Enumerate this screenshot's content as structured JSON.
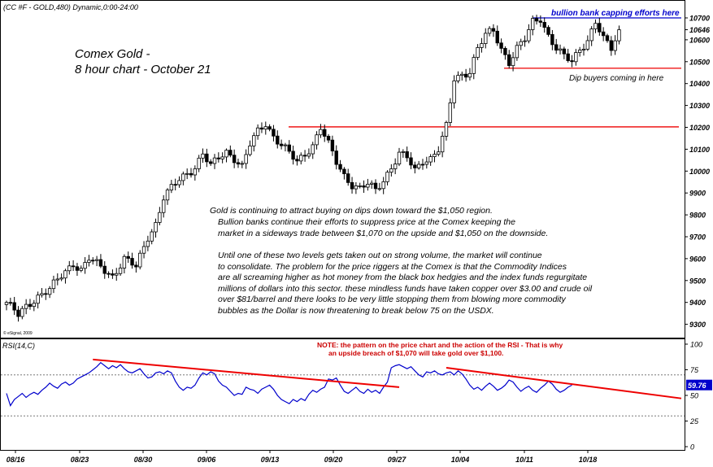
{
  "header": {
    "symbol_line": "(CC #F - GOLD,480) Dynamic,0:00-24:00",
    "title_line1": "Comex Gold -",
    "title_line2": "8 hour chart - October 21",
    "copyright": "© eSignal, 2009"
  },
  "annotations": {
    "capping": "bullion bank capping efforts here",
    "dip": "Dip buyers coming in here",
    "commentary": [
      "Gold is continuing to attract buying on dips down toward the $1,050 region.",
      "Bullion banks continue their efforts to suppress price at the Comex keeping the",
      "market in a sideways trade between $1,070 on the upside and $1,050 on the downside.",
      "",
      "Until one of these two levels gets taken out on strong volume, the market will continue",
      "to consolidate. The problem for the price riggers at the Comex is that the Commodity Indices",
      "are all screaming higher as hot money from the black box hedgies and the index funds regurgitate",
      "millions of dollars into this sector. these mindless funds  have taken copper over $3.00 and crude oil",
      "over $81/barrel and there looks to be very little stopping them from blowing more commodity",
      "bubbles as the Dollar is now threatening to break below 75 on the USDX."
    ],
    "rsi_note_line1": "NOTE: the pattern on the price chart and the action of the RSI - That is why",
    "rsi_note_line2": "an upside breach of $1,070 will take gold over $1,100."
  },
  "colors": {
    "candle": "#000000",
    "resistance_line": "#ee0000",
    "capping_line": "#0000cc",
    "rsi_line": "#0000cc",
    "rsi_trendline": "#ee0000",
    "rsi_badge": "#0000cc"
  },
  "chart_data": [
    {
      "type": "candlestick",
      "title": "Comex Gold - 8 hour chart - October 21",
      "y_ticks": [
        "10700",
        "10646",
        "10600",
        "10500",
        "10400",
        "10300",
        "10200",
        "10100",
        "10000",
        "9900",
        "9800",
        "9700",
        "9600",
        "9500",
        "9400",
        "9300"
      ],
      "last_price": "10646",
      "x_ticks": [
        "08/16",
        "08/23",
        "08/30",
        "09/06",
        "09/13",
        "09/20",
        "09/27",
        "10/04",
        "10/11",
        "10/18"
      ],
      "horizontal_levels": [
        {
          "price": 10202,
          "color": "resistance_line"
        },
        {
          "price": 10470,
          "color": "resistance_line"
        },
        {
          "price": 10700,
          "color": "capping_line"
        }
      ],
      "path_points": [
        [
          0,
          9400
        ],
        [
          3,
          9340
        ],
        [
          5,
          9380
        ],
        [
          8,
          9430
        ],
        [
          11,
          9460
        ],
        [
          14,
          9520
        ],
        [
          17,
          9580
        ],
        [
          19,
          9550
        ],
        [
          21,
          9600
        ],
        [
          24,
          9560
        ],
        [
          27,
          9520
        ],
        [
          30,
          9600
        ],
        [
          33,
          9560
        ],
        [
          36,
          9700
        ],
        [
          38,
          9760
        ],
        [
          40,
          9880
        ],
        [
          42,
          9920
        ],
        [
          44,
          9960
        ],
        [
          46,
          9990
        ],
        [
          48,
          10020
        ],
        [
          50,
          10080
        ],
        [
          52,
          10020
        ],
        [
          54,
          10060
        ],
        [
          56,
          10090
        ],
        [
          58,
          10060
        ],
        [
          60,
          10020
        ],
        [
          62,
          10120
        ],
        [
          64,
          10180
        ],
        [
          66,
          10220
        ],
        [
          68,
          10160
        ],
        [
          70,
          10120
        ],
        [
          72,
          10080
        ],
        [
          74,
          10040
        ],
        [
          76,
          10080
        ],
        [
          78,
          10120
        ],
        [
          80,
          10200
        ],
        [
          82,
          10120
        ],
        [
          84,
          10040
        ],
        [
          86,
          9980
        ],
        [
          88,
          9940
        ],
        [
          90,
          9920
        ],
        [
          92,
          9940
        ],
        [
          94,
          9910
        ],
        [
          96,
          9960
        ],
        [
          98,
          10020
        ],
        [
          100,
          10080
        ],
        [
          102,
          10060
        ],
        [
          104,
          10000
        ],
        [
          106,
          10050
        ],
        [
          108,
          10060
        ],
        [
          110,
          10100
        ],
        [
          112,
          10200
        ],
        [
          114,
          10420
        ],
        [
          116,
          10440
        ],
        [
          118,
          10460
        ],
        [
          120,
          10560
        ],
        [
          122,
          10620
        ],
        [
          124,
          10640
        ],
        [
          126,
          10560
        ],
        [
          128,
          10500
        ],
        [
          130,
          10560
        ],
        [
          132,
          10600
        ],
        [
          134,
          10680
        ],
        [
          136,
          10700
        ],
        [
          138,
          10620
        ],
        [
          140,
          10560
        ],
        [
          142,
          10520
        ],
        [
          144,
          10500
        ],
        [
          146,
          10560
        ],
        [
          148,
          10600
        ],
        [
          150,
          10680
        ],
        [
          152,
          10600
        ],
        [
          154,
          10560
        ],
        [
          156,
          10646
        ]
      ],
      "bar_count": 157
    },
    {
      "type": "line",
      "series": [
        {
          "name": "RSI(14,C)",
          "values": [
            52,
            40,
            46,
            49,
            52,
            48,
            51,
            53,
            51,
            55,
            58,
            62,
            59,
            57,
            61,
            63,
            60,
            62,
            66,
            68,
            70,
            72,
            75,
            78,
            82,
            79,
            76,
            79,
            77,
            80,
            76,
            73,
            72,
            74,
            76,
            71,
            67,
            68,
            72,
            73,
            71,
            74,
            72,
            64,
            58,
            55,
            58,
            57,
            60,
            67,
            72,
            70,
            73,
            71,
            64,
            60,
            58,
            54,
            50,
            52,
            51,
            58,
            56,
            55,
            52,
            56,
            58,
            60,
            56,
            50,
            46,
            44,
            42,
            46,
            44,
            47,
            45,
            51,
            55,
            53,
            56,
            58,
            66,
            65,
            67,
            60,
            54,
            52,
            55,
            58,
            54,
            52,
            56,
            53,
            55,
            52,
            58,
            63,
            77,
            79,
            80,
            78,
            76,
            78,
            74,
            70,
            68,
            73,
            72,
            74,
            71,
            70,
            72,
            73,
            70,
            74,
            71,
            66,
            60,
            56,
            58,
            55,
            59,
            62,
            59,
            55,
            57,
            60,
            65,
            63,
            58,
            54,
            57,
            59,
            55,
            53,
            57,
            60,
            64,
            61,
            56,
            53,
            55,
            58,
            60
          ]
        }
      ],
      "y_ticks": [
        "100",
        "75",
        "50",
        "25",
        "0"
      ],
      "ylim": [
        0,
        100
      ],
      "dashed_levels": [
        30,
        70
      ],
      "last_value": "59.76",
      "trendlines": [
        {
          "from": [
            22,
            85
          ],
          "to": [
            100,
            58
          ]
        },
        {
          "from": [
            112,
            77
          ],
          "to": [
            156,
            55
          ]
        }
      ]
    }
  ]
}
